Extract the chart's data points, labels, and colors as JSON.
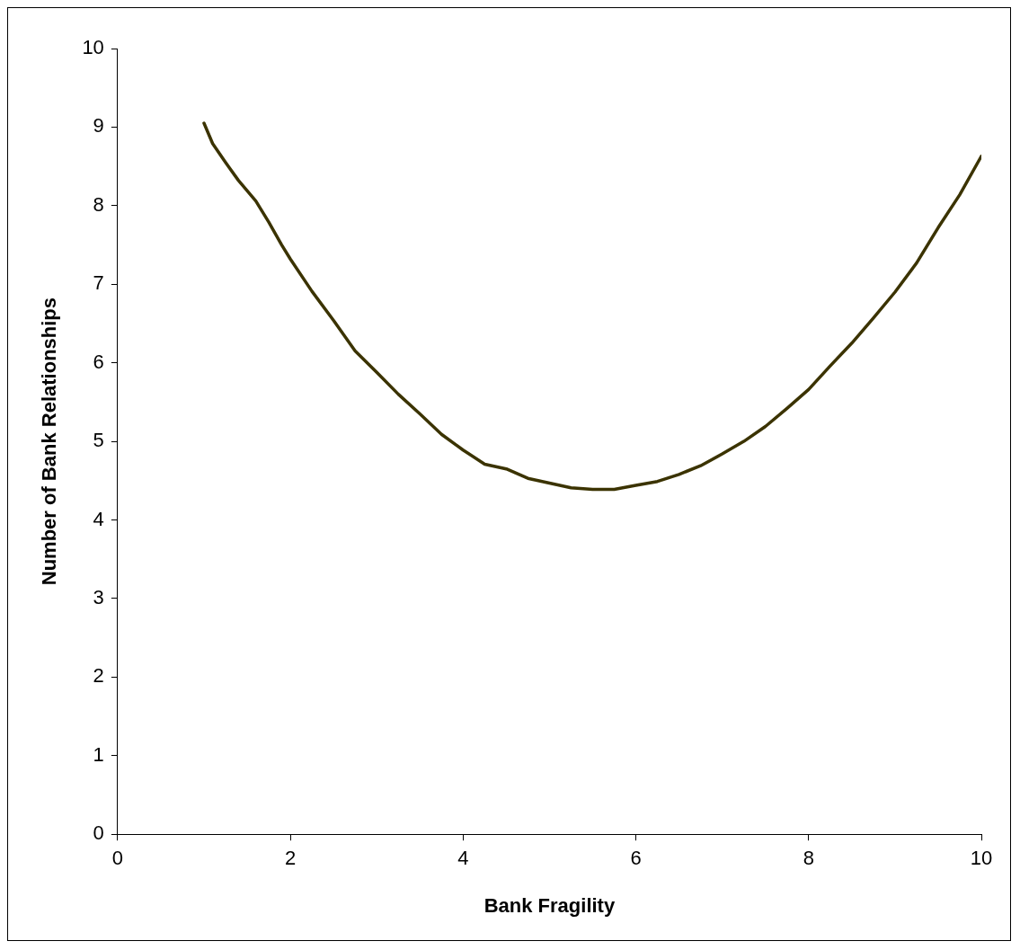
{
  "chart_data": {
    "type": "line",
    "xlabel": "Bank Fragility",
    "ylabel": "Number of Bank Relationships",
    "xlim": [
      0,
      10
    ],
    "xticks": [
      0,
      2,
      4,
      6,
      8,
      10
    ],
    "ylim": [
      0,
      10
    ],
    "yticks": [
      0,
      1,
      2,
      3,
      4,
      5,
      6,
      7,
      8,
      9,
      10
    ],
    "grid": false,
    "legend": false,
    "marker": "none",
    "line_style": "solid",
    "series": [
      {
        "color": "#3b3300",
        "x": [
          1.0,
          1.1,
          1.25,
          1.4,
          1.6,
          1.75,
          1.9,
          2.0,
          2.25,
          2.5,
          2.75,
          3.0,
          3.25,
          3.5,
          3.75,
          4.0,
          4.25,
          4.5,
          4.75,
          5.0,
          5.25,
          5.5,
          5.75,
          6.0,
          6.25,
          6.5,
          6.75,
          7.0,
          7.25,
          7.5,
          7.75,
          8.0,
          8.25,
          8.5,
          8.75,
          9.0,
          9.25,
          9.5,
          9.75,
          10.0
        ],
        "values": [
          9.05,
          8.79,
          8.55,
          8.32,
          8.06,
          7.79,
          7.5,
          7.32,
          6.91,
          6.54,
          6.15,
          5.88,
          5.6,
          5.35,
          5.09,
          4.89,
          4.71,
          4.65,
          4.53,
          4.47,
          4.41,
          4.39,
          4.39,
          4.44,
          4.49,
          4.58,
          4.69,
          4.84,
          5.0,
          5.19,
          5.42,
          5.66,
          5.96,
          6.25,
          6.57,
          6.9,
          7.27,
          7.72,
          8.14,
          8.63
        ]
      }
    ]
  }
}
